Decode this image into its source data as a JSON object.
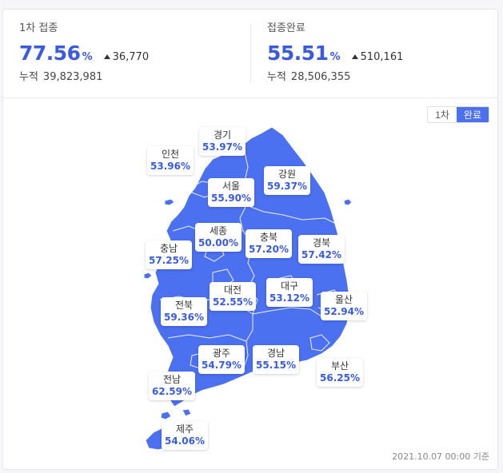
{
  "stats": {
    "first_dose": {
      "label": "1차 접종",
      "rate": "77.56",
      "pct": "%",
      "delta": "36,770",
      "total_label": "누적",
      "total": "39,823,981"
    },
    "complete": {
      "label": "접종완료",
      "rate": "55.51",
      "pct": "%",
      "delta": "510,161",
      "total_label": "누적",
      "total": "28,506,355"
    }
  },
  "toggle": {
    "first_label": "1차",
    "done_label": "완료",
    "selected": "완료"
  },
  "regions": [
    {
      "id": "gyeonggi",
      "name": "경기",
      "value": "53.97%"
    },
    {
      "id": "incheon",
      "name": "인천",
      "value": "53.96%"
    },
    {
      "id": "gangwon",
      "name": "강원",
      "value": "59.37%"
    },
    {
      "id": "seoul",
      "name": "서울",
      "value": "55.90%"
    },
    {
      "id": "sejong",
      "name": "세종",
      "value": "50.00%"
    },
    {
      "id": "chungbuk",
      "name": "충북",
      "value": "57.20%"
    },
    {
      "id": "gyeongbuk",
      "name": "경북",
      "value": "57.42%"
    },
    {
      "id": "chungnam",
      "name": "충남",
      "value": "57.25%"
    },
    {
      "id": "daejeon",
      "name": "대전",
      "value": "52.55%"
    },
    {
      "id": "daegu",
      "name": "대구",
      "value": "53.12%"
    },
    {
      "id": "jeonbuk",
      "name": "전북",
      "value": "59.36%"
    },
    {
      "id": "ulsan",
      "name": "울산",
      "value": "52.94%"
    },
    {
      "id": "gwangju",
      "name": "광주",
      "value": "54.79%"
    },
    {
      "id": "gyeongnam",
      "name": "경남",
      "value": "55.15%"
    },
    {
      "id": "busan",
      "name": "부산",
      "value": "56.25%"
    },
    {
      "id": "jeonnam",
      "name": "전남",
      "value": "62.59%"
    },
    {
      "id": "jeju",
      "name": "제주",
      "value": "54.06%"
    }
  ],
  "basis": "2021.10.07 00:00 기준",
  "colors": {
    "accent": "#3a5be0",
    "map_fill": "#4b70f0",
    "toggle_active": "#4b70f0"
  }
}
